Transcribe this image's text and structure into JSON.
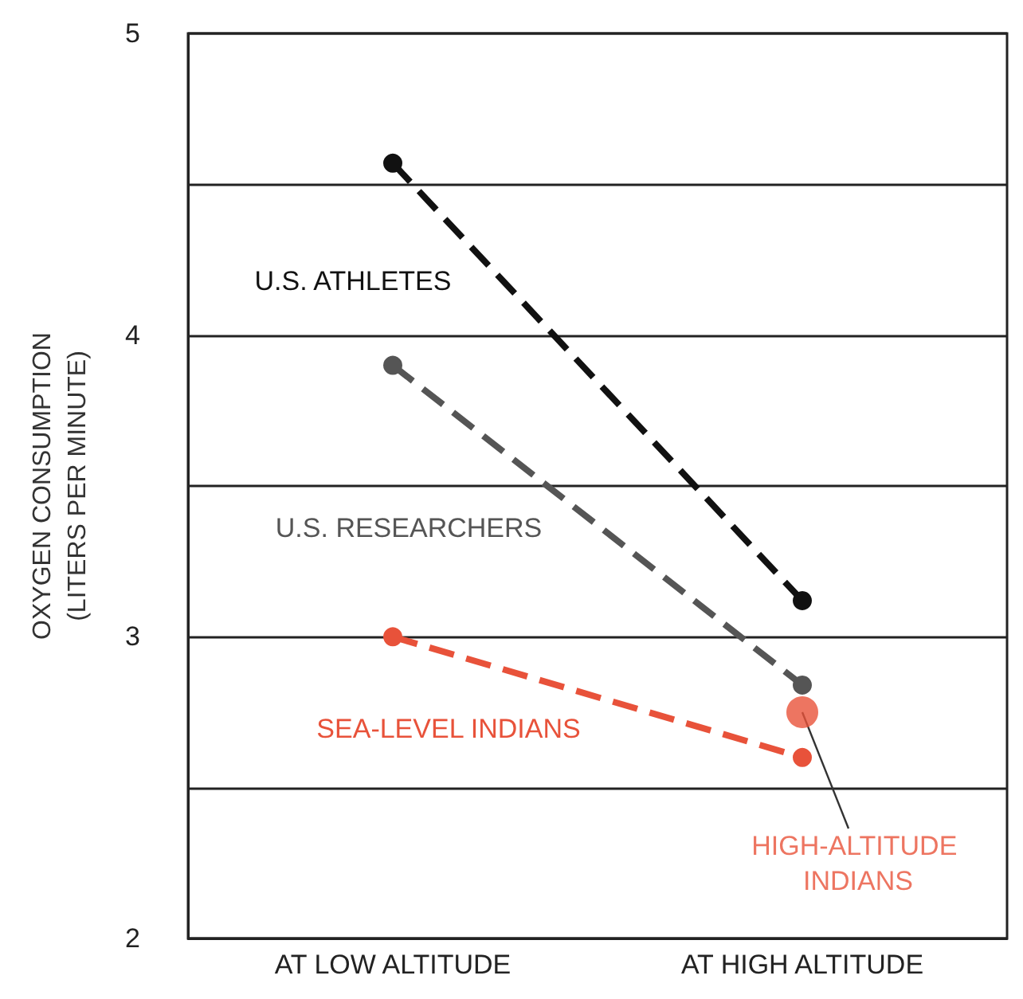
{
  "chart_data": {
    "type": "line",
    "ylabel": "OXYGEN CONSUMPTION\n(LITERS PER MINUTE)",
    "categories": [
      "AT LOW ALTITUDE",
      "AT HIGH ALTITUDE"
    ],
    "series": [
      {
        "name": "U.S. ATHLETES",
        "color": "#111111",
        "values": [
          4.57,
          3.12
        ],
        "line_style": "dashed"
      },
      {
        "name": "U.S. RESEARCHERS",
        "color": "#555555",
        "values": [
          3.9,
          2.84
        ],
        "line_style": "dashed"
      },
      {
        "name": "SEA-LEVEL INDIANS",
        "color": "#e8523a",
        "values": [
          3.0,
          2.6
        ],
        "line_style": "dashed"
      },
      {
        "name": "HIGH-ALTITUDE INDIANS",
        "type": "scatter",
        "color": "#e8523a",
        "values": [
          null,
          2.75
        ]
      }
    ],
    "ylim": [
      2,
      5
    ],
    "yticks": [
      2,
      {
        "value": 2.5,
        "label": null
      },
      3,
      {
        "value": 3.5,
        "label": null
      },
      4,
      {
        "value": 4.5,
        "label": null
      },
      5
    ],
    "grid": "y",
    "marker": "circle",
    "legend": false
  }
}
